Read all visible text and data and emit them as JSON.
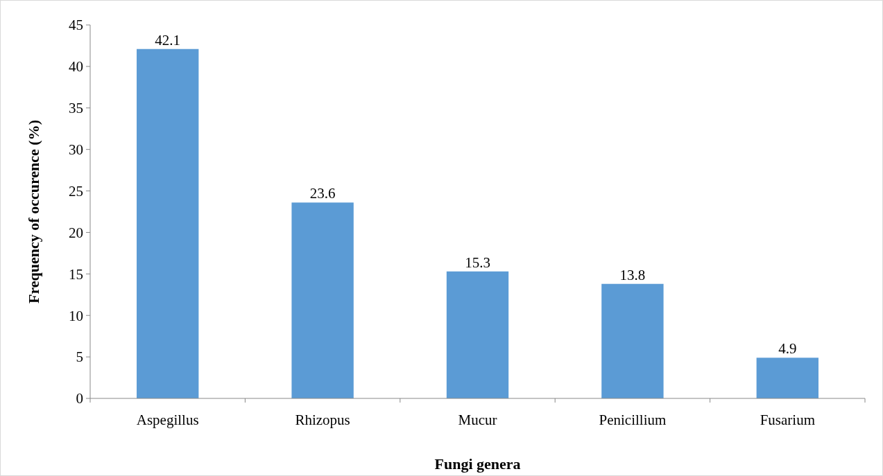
{
  "chart_data": {
    "type": "bar",
    "xlabel": "Fungi genera",
    "ylabel": "Frequency of occurence (%)",
    "categories": [
      "Aspegillus",
      "Rhizopus",
      "Mucur",
      "Penicillium",
      "Fusarium"
    ],
    "values": [
      42.1,
      23.6,
      15.3,
      13.8,
      4.9
    ],
    "color": "#5b9bd5",
    "ylim": [
      0,
      45
    ],
    "yticks": [
      0,
      5,
      10,
      15,
      20,
      25,
      30,
      35,
      40,
      45
    ],
    "grid": false,
    "data_labels": true
  }
}
